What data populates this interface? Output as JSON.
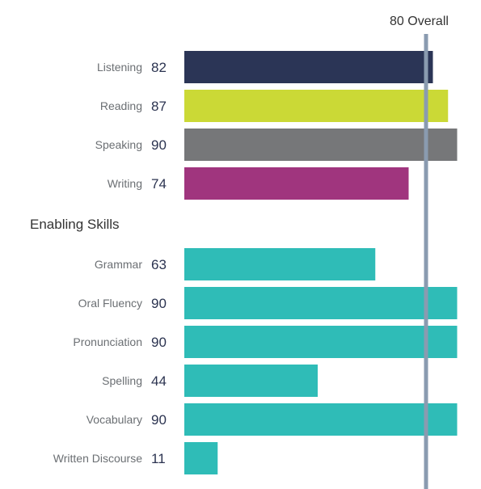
{
  "chart_data": {
    "type": "bar",
    "orientation": "horizontal",
    "xlim": [
      10,
      90
    ],
    "grid": false,
    "reference_line": {
      "value": 80,
      "label": "80 Overall",
      "color": "#8a9bb0"
    },
    "groups": [
      {
        "title": "",
        "bars": [
          {
            "category": "Listening",
            "value": 82,
            "color": "#2b3556"
          },
          {
            "category": "Reading",
            "value": 87,
            "color": "#cbd936"
          },
          {
            "category": "Speaking",
            "value": 90,
            "color": "#767779"
          },
          {
            "category": "Writing",
            "value": 74,
            "color": "#a0357e"
          }
        ]
      },
      {
        "title": "Enabling Skills",
        "bars": [
          {
            "category": "Grammar",
            "value": 63,
            "color": "#2fbcb7"
          },
          {
            "category": "Oral Fluency",
            "value": 90,
            "color": "#2fbcb7"
          },
          {
            "category": "Pronunciation",
            "value": 90,
            "color": "#2fbcb7"
          },
          {
            "category": "Spelling",
            "value": 44,
            "color": "#2fbcb7"
          },
          {
            "category": "Vocabulary",
            "value": 90,
            "color": "#2fbcb7"
          },
          {
            "category": "Written Discourse",
            "value": 11,
            "color": "#2fbcb7"
          }
        ]
      }
    ]
  }
}
